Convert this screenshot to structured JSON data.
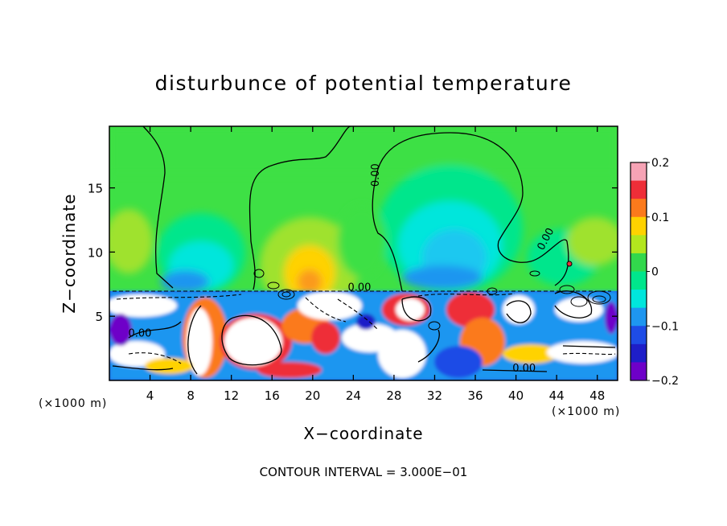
{
  "chart_data": {
    "type": "heatmap",
    "title": "disturbunce of potential temperature",
    "xlabel": "X−coordinate",
    "ylabel": "Z−coordinate",
    "x_unit": "(×1000 m)",
    "y_unit": "(×1000 m)",
    "footer": "CONTOUR INTERVAL = 3.000E−01",
    "xlim": [
      0,
      50
    ],
    "ylim": [
      0,
      19.8
    ],
    "x_ticks": [
      4,
      8,
      12,
      16,
      20,
      24,
      28,
      32,
      36,
      40,
      44,
      48
    ],
    "y_ticks": [
      5,
      10,
      15
    ],
    "colorbar": {
      "min": -0.2,
      "max": 0.2,
      "ticks": [
        "0.2",
        "0.1",
        "0",
        "−0.1",
        "−0.2"
      ],
      "tick_values": [
        0.2,
        0.1,
        0,
        -0.1,
        -0.2
      ],
      "colors": [
        "#f6a3b5",
        "#ee2e38",
        "#fb7a1c",
        "#ffd200",
        "#b3e61e",
        "#32d84c",
        "#00e68c",
        "#00e6dc",
        "#1e96f0",
        "#1e4ce6",
        "#1e1ec8",
        "#6e00c8"
      ]
    },
    "contour_labels": [
      {
        "text": "0.00",
        "x": 26.5,
        "z": 16.0,
        "rotate": -90
      },
      {
        "text": "0.00",
        "x": 43.2,
        "z": 10.9,
        "rotate": -62
      },
      {
        "text": "0.00",
        "x": 24.6,
        "z": 7.0,
        "rotate": 0
      },
      {
        "text": "0.00",
        "x": 3.0,
        "z": 3.4,
        "rotate": 0
      },
      {
        "text": "0.00",
        "x": 40.8,
        "z": 0.7,
        "rotate": 0
      }
    ]
  }
}
